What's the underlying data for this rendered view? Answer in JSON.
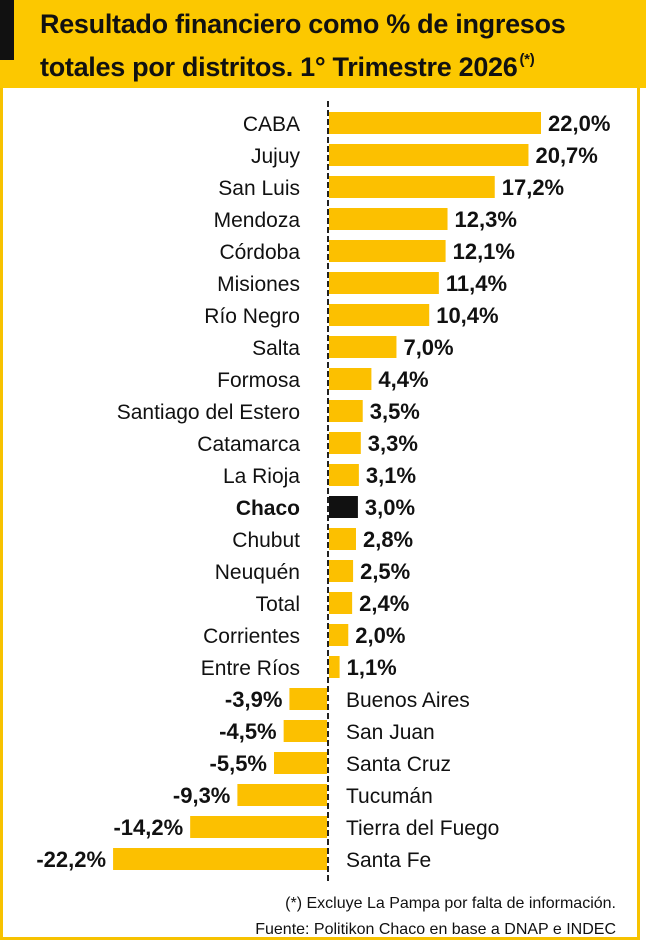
{
  "header": {
    "title_line1": "Resultado financiero como % de ingresos",
    "title_line2": "totales por distritos.  1° Trimestre 2026",
    "title_note": "(*)"
  },
  "footer": {
    "note": "(*) Excluye La Pampa por falta de información.",
    "source": "Fuente: Politikon Chaco en base a DNAP e INDEC"
  },
  "colors": {
    "bar": "#fcc000",
    "highlight": "#111111",
    "header_bg": "#fcc800"
  },
  "chart_data": {
    "type": "bar",
    "orientation": "horizontal",
    "highlight_category": "Chaco",
    "categories": [
      "CABA",
      "Jujuy",
      "San Luis",
      "Mendoza",
      "Córdoba",
      "Misiones",
      "Río Negro",
      "Salta",
      "Formosa",
      "Santiago del Estero",
      "Catamarca",
      "La Rioja",
      "Chaco",
      "Chubut",
      "Neuquén",
      "Total",
      "Corrientes",
      "Entre Ríos",
      "Buenos Aires",
      "San Juan",
      "Santa Cruz",
      "Tucumán",
      "Tierra del Fuego",
      "Santa Fe"
    ],
    "values": [
      22.0,
      20.7,
      17.2,
      12.3,
      12.1,
      11.4,
      10.4,
      7.0,
      4.4,
      3.5,
      3.3,
      3.1,
      3.0,
      2.8,
      2.5,
      2.4,
      2.0,
      1.1,
      -3.9,
      -4.5,
      -5.5,
      -9.3,
      -14.2,
      -22.2
    ],
    "value_labels": [
      "22,0%",
      "20,7%",
      "17,2%",
      "12,3%",
      "12,1%",
      "11,4%",
      "10,4%",
      "7,0%",
      "4,4%",
      "3,5%",
      "3,3%",
      "3,1%",
      "3,0%",
      "2,8%",
      "2,5%",
      "2,4%",
      "2,0%",
      "1,1%",
      "-3,9%",
      "-4,5%",
      "-5,5%",
      "-9,3%",
      "-14,2%",
      "-22,2%"
    ],
    "xlim": [
      -22.2,
      22.0
    ]
  }
}
